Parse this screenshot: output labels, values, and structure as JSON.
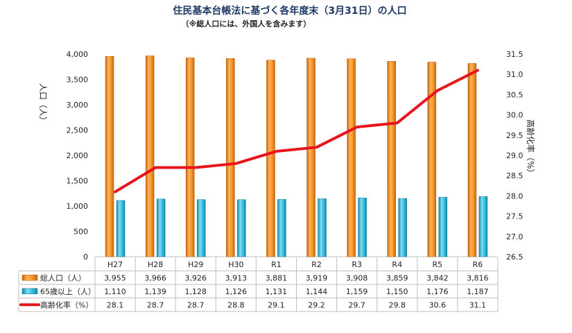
{
  "chart_data": {
    "type": "bar",
    "title": "住民基本台帳法に基づく各年度末（3月31日）の人口",
    "subtitle": "（※総人口には、外国人を含みます）",
    "ylabel": "人口（人）",
    "y2label": "高齢化率（%）",
    "categories": [
      "H27",
      "H28",
      "H29",
      "H30",
      "R1",
      "R2",
      "R3",
      "R4",
      "R5",
      "R6"
    ],
    "ylim": [
      0,
      4000
    ],
    "yticks": [
      "0",
      "500",
      "1,000",
      "1,500",
      "2,000",
      "2,500",
      "3,000",
      "3,500",
      "4,000"
    ],
    "y2lim": [
      26.5,
      31.5
    ],
    "y2ticks": [
      "26.5",
      "27.0",
      "27.5",
      "28.0",
      "28.5",
      "29.0",
      "29.5",
      "30.0",
      "30.5",
      "31.0",
      "31.5"
    ],
    "legend_position": "bottom (data table)",
    "series": [
      {
        "name": "総人口（人）",
        "type": "bar",
        "axis": "left",
        "color": "#F28C1E",
        "values": [
          3955,
          3966,
          3926,
          3913,
          3881,
          3919,
          3908,
          3859,
          3842,
          3816
        ],
        "labels": [
          "3,955",
          "3,966",
          "3,926",
          "3,913",
          "3,881",
          "3,919",
          "3,908",
          "3,859",
          "3,842",
          "3,816"
        ]
      },
      {
        "name": "65歳以上（人）",
        "type": "bar",
        "axis": "left",
        "color": "#2DB3D9",
        "values": [
          1110,
          1139,
          1128,
          1126,
          1131,
          1144,
          1159,
          1150,
          1176,
          1187
        ],
        "labels": [
          "1,110",
          "1,139",
          "1,128",
          "1,126",
          "1,131",
          "1,144",
          "1,159",
          "1,150",
          "1,176",
          "1,187"
        ]
      },
      {
        "name": "高齢化率（%）",
        "type": "line",
        "axis": "right",
        "color": "#E8141B",
        "values": [
          28.1,
          28.7,
          28.7,
          28.8,
          29.1,
          29.2,
          29.7,
          29.8,
          30.6,
          31.1
        ],
        "labels": [
          "28.1",
          "28.7",
          "28.7",
          "28.8",
          "29.1",
          "29.2",
          "29.7",
          "29.8",
          "30.6",
          "31.1"
        ]
      }
    ]
  }
}
